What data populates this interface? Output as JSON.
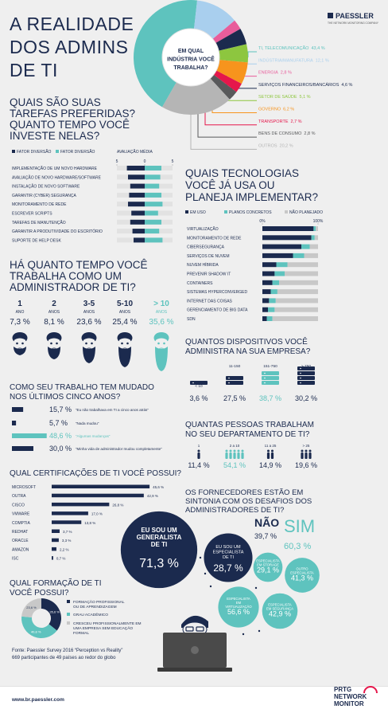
{
  "header": {
    "title": [
      "A REALIDADE",
      "DOS ADMINS",
      "DE TI"
    ],
    "logo": "PAESSLER",
    "tagline": "THE NETWORK MONITORING COMPANY"
  },
  "industry": {
    "question": [
      "EM QUAL",
      "INDÚSTRIA VOCÊ",
      "TRABALHA?"
    ],
    "items": [
      {
        "name": "TI, TELECOMUNICAÇÃO",
        "value": 43.4,
        "label": "43,4 %",
        "color": "#5ec3be"
      },
      {
        "name": "INDÚSTRIA/MANUFATURA",
        "value": 12.1,
        "label": "12,1 %",
        "color": "#a9cfee"
      },
      {
        "name": "ENERGIA",
        "value": 2.8,
        "label": "2,8 %",
        "color": "#e85d9b"
      },
      {
        "name": "SERVIÇOS FINANCEIROS/BANCÁRIOS",
        "value": 4.6,
        "label": "4,6 %",
        "color": "#1b2a4e"
      },
      {
        "name": "SETOR DE SAÚDE",
        "value": 5.1,
        "label": "5,1 %",
        "color": "#8dc63f"
      },
      {
        "name": "GOVERNO",
        "value": 6.2,
        "label": "6,2 %",
        "color": "#f7941d"
      },
      {
        "name": "TRANSPORTE",
        "value": 2.7,
        "label": "2,7 %",
        "color": "#e5174b"
      },
      {
        "name": "BENS DE CONSUMO",
        "value": 2.8,
        "label": "2,8 %",
        "color": "#58595b"
      },
      {
        "name": "OUTROS",
        "value": 20.2,
        "label": "20,2 %",
        "color": "#b5b5b5"
      }
    ]
  },
  "tasks": {
    "title": [
      "QUAIS SÃO SUAS",
      "TAREFAS PREFERIDAS?",
      "QUANTO TEMPO VOCÊ",
      "INVESTE NELAS?"
    ],
    "axis_title": "AVALIAÇÃO MÉDIA",
    "ticks": [
      {
        "value": -5,
        "label": "5"
      },
      0,
      5
    ],
    "categories": [
      "IMPLEMENTAÇÃO DE UM NOVO HARDWARE",
      "AVALIAÇÃO DE NOVO HARDWARE/SOFTWARE",
      "INSTALAÇÃO DE NOVO SOFTWARE",
      "GARANTIR (CYBER) SEGURANÇA",
      "MONITORAMENTO DE REDE",
      "ESCREVER SCRIPTS",
      "TAREFAS DE MANUTENÇÃO",
      "GARANTIR A PRODUTIVIDADE DO ESCRITÓRIO",
      "SUPORTE DE HELP DESK"
    ],
    "series": [
      {
        "name": "FATOR DIVERSÃO",
        "color": "#1b2a4e",
        "values": [
          -3.2,
          -3.0,
          -2.6,
          -2.8,
          -3.0,
          -2.4,
          -2.6,
          -2.2,
          -2.0
        ]
      },
      {
        "name": "FATOR DIVERSÃO",
        "color": "#5ec3be",
        "values": [
          3.0,
          2.8,
          2.6,
          3.0,
          3.2,
          2.4,
          3.0,
          2.6,
          3.2
        ]
      }
    ]
  },
  "years": {
    "title": [
      "HÁ QUANTO TEMPO VOCÊ",
      "TRABALHA COMO UM",
      "ADMINISTRADOR DE TI?"
    ],
    "groups": [
      {
        "range": "1",
        "unit": "ANO",
        "share": {
          "value": 7.3,
          "label": "7,3 %"
        }
      },
      {
        "range": "2",
        "unit": "ANOS",
        "share": {
          "value": 8.1,
          "label": "8,1 %"
        }
      },
      {
        "range": "3-5",
        "unit": "ANOS",
        "share": {
          "value": 23.6,
          "label": "23,6 %"
        }
      },
      {
        "range": "5-10",
        "unit": "ANOS",
        "share": {
          "value": 25.4,
          "label": "25,4 %"
        }
      },
      {
        "range": "> 10",
        "unit": "ANOS",
        "share": {
          "value": 35.6,
          "label": "35,6 %"
        }
      }
    ]
  },
  "changes": {
    "title": [
      "COMO SEU TRABALHO TEM MUDADO",
      "NOS ÚLTIMOS CINCO ANOS?"
    ],
    "items": [
      {
        "share": {
          "value": 15.7,
          "label": "15,7 %"
        },
        "quote": "“Eu não trabalhava em TI a cinco anos atrás”",
        "color": "#1b2a4e"
      },
      {
        "share": {
          "value": 5.7,
          "label": "5,7 %"
        },
        "quote": "“Nada mudou”",
        "color": "#1b2a4e"
      },
      {
        "share": {
          "value": 48.6,
          "label": "48,6 %"
        },
        "quote": "“Algumas mudanças”",
        "color": "#5ec3be"
      },
      {
        "share": {
          "value": 30.0,
          "label": "30,0 %"
        },
        "quote": "“Minha vida de administrador mudou completamente”",
        "color": "#1b2a4e"
      }
    ]
  },
  "certifications": {
    "title": "QUAL CERTIFICAÇÕES DE TI VOCÊ POSSUI?",
    "items": [
      {
        "name": "MICROSOFT",
        "value": 45.6,
        "label": "45,6 %"
      },
      {
        "name": "OUTRA",
        "value": 42.9,
        "label": "42,9 %"
      },
      {
        "name": "CISCO",
        "value": 26.8,
        "label": "26,8 %"
      },
      {
        "name": "VMWARE",
        "value": 17.0,
        "label": "17,0 %"
      },
      {
        "name": "COMPTIA",
        "value": 13.8,
        "label": "13,8 %"
      },
      {
        "name": "REDHAT",
        "value": 3.7,
        "label": "3,7 %"
      },
      {
        "name": "ORACLE",
        "value": 3.3,
        "label": "3,3 %"
      },
      {
        "name": "AMAZON",
        "value": 2.2,
        "label": "2,2 %"
      },
      {
        "name": "ISC",
        "value": 0.7,
        "label": "0,7 %"
      }
    ]
  },
  "education": {
    "title": [
      "QUAL FORMAÇÃO DE TI",
      "VOCÊ POSSUI?"
    ],
    "items": [
      {
        "name": [
          "FORMAÇÃO PROFISSIONAL",
          "OU DE APRENDIZAGEM"
        ],
        "value": 35.6,
        "label": "35,6 %",
        "color": "#1b2a4e"
      },
      {
        "name": [
          "GRAU ACADÊMICO"
        ],
        "value": 40.8,
        "label": "40,8 %",
        "color": "#5ec3be"
      },
      {
        "name": [
          "CRESCEU PROFISSIONALMENTE EM",
          "UMA EMPRESA SEM EDUCAÇÃO",
          "FORMAL"
        ],
        "value": 23.6,
        "label": "23,6 %",
        "color": "#c8c8c8"
      }
    ]
  },
  "tech": {
    "title": [
      "QUAIS TECNOLOGIAS",
      "VOCÊ JÁ USA OU",
      "PLANEJA IMPLEMENTAR?"
    ],
    "ticks": [
      {
        "value": 0,
        "label": "0%"
      },
      {
        "value": 100,
        "label": "100%"
      }
    ],
    "categories": [
      "VIRTUALIZAÇÃO",
      "MONITORAMENTO DE REDE",
      "CIBERSEGURANÇA",
      "SERVIÇOS DE NUVEM",
      "NUVEM HÍBRIDA",
      "PREVENIR SHADOW IT",
      "CONTAINERS",
      "SISTEMAS HYPERCONVERGED",
      "INTERNET DAS COISAS",
      "GERENCIAMENTO DE BIG DATA",
      "SDN"
    ],
    "series": [
      {
        "name": "EM USO",
        "color": "#1b2a4e",
        "values": [
          92,
          88,
          70,
          55,
          25,
          22,
          18,
          15,
          12,
          10,
          8
        ]
      },
      {
        "name": "PLANOS CONCRETOS",
        "color": "#5ec3be",
        "values": [
          4,
          6,
          15,
          20,
          20,
          18,
          12,
          12,
          12,
          12,
          10
        ]
      },
      {
        "name": "NÃO PLANEJADO",
        "color": "#c8c8c8",
        "values": [
          4,
          6,
          15,
          25,
          55,
          60,
          70,
          73,
          76,
          78,
          82
        ]
      }
    ]
  },
  "devices": {
    "title": [
      "QUANTOS DISPOSITIVOS VOCÊ",
      "ADMINISTRA NA SUA EMPRESA?"
    ],
    "items": [
      {
        "range": "< 10",
        "share": {
          "value": 3.6,
          "label": "3,6 %"
        }
      },
      {
        "range": "11-150",
        "share": {
          "value": 27.5,
          "label": "27,5 %"
        }
      },
      {
        "range": "151-750",
        "share": {
          "value": 38.7,
          "label": "38,7 %"
        }
      },
      {
        "range": "> 750",
        "share": {
          "value": 30.2,
          "label": "30,2 %"
        }
      }
    ]
  },
  "people": {
    "title": [
      "QUANTAS PESSOAS TRABALHAM",
      "NO SEU DEPARTAMENTO DE TI?"
    ],
    "items": [
      {
        "range": "1",
        "share": {
          "value": 11.4,
          "label": "11,4 %"
        }
      },
      {
        "range": "2 a 10",
        "share": {
          "value": 54.1,
          "label": "54,1 %"
        }
      },
      {
        "range": "11 a 25",
        "share": {
          "value": 14.9,
          "label": "14,9 %"
        }
      },
      {
        "range": "> 25",
        "share": {
          "value": 19.6,
          "label": "19,6 %"
        }
      }
    ]
  },
  "vendors": {
    "title": [
      "OS FORNECEDORES ESTÃO EM",
      "SINTONIA COM OS DESAFIOS DOS",
      "ADMINISTRADORES DE TI?"
    ],
    "no": {
      "name": "NÃO",
      "value": 39.7,
      "label": "39,7 %"
    },
    "yes": {
      "name": "SIM",
      "value": 60.3,
      "label": "60,3 %"
    }
  },
  "roles": {
    "generalist": {
      "name": [
        "EU SOU UM",
        "GENERALISTA",
        "DE TI"
      ],
      "value": 71.3,
      "label": "71,3 %"
    },
    "specialist": {
      "name": [
        "EU SOU UM",
        "ESPECIALISTA",
        "DE TI"
      ],
      "value": 28.7,
      "label": "28,7 %"
    },
    "specialties": [
      {
        "name": [
          "ESPECIALISTA",
          "EM STORAGE"
        ],
        "value": 29.1,
        "label": "29,1 %"
      },
      {
        "name": [
          "OUTRO",
          "ESPECIALISTA"
        ],
        "value": 41.3,
        "label": "41,3 %"
      },
      {
        "name": [
          "ESPECIALISTA",
          "EM",
          "VIRTUALIZAÇÃO"
        ],
        "value": 56.6,
        "label": "56,6 %"
      },
      {
        "name": [
          "ESPECIALISTA",
          "EM SEGURANÇA"
        ],
        "value": 42.9,
        "label": "42,9 %"
      }
    ]
  },
  "footer": {
    "source": "Fonte: Paessler Survey 2016 “Perception vs Reality”",
    "participants": "669 participantes de 49 países ao redor do globo",
    "url": "www.br.paessler.com",
    "product": [
      "PRTG",
      "NETWORK",
      "MONITOR"
    ]
  }
}
